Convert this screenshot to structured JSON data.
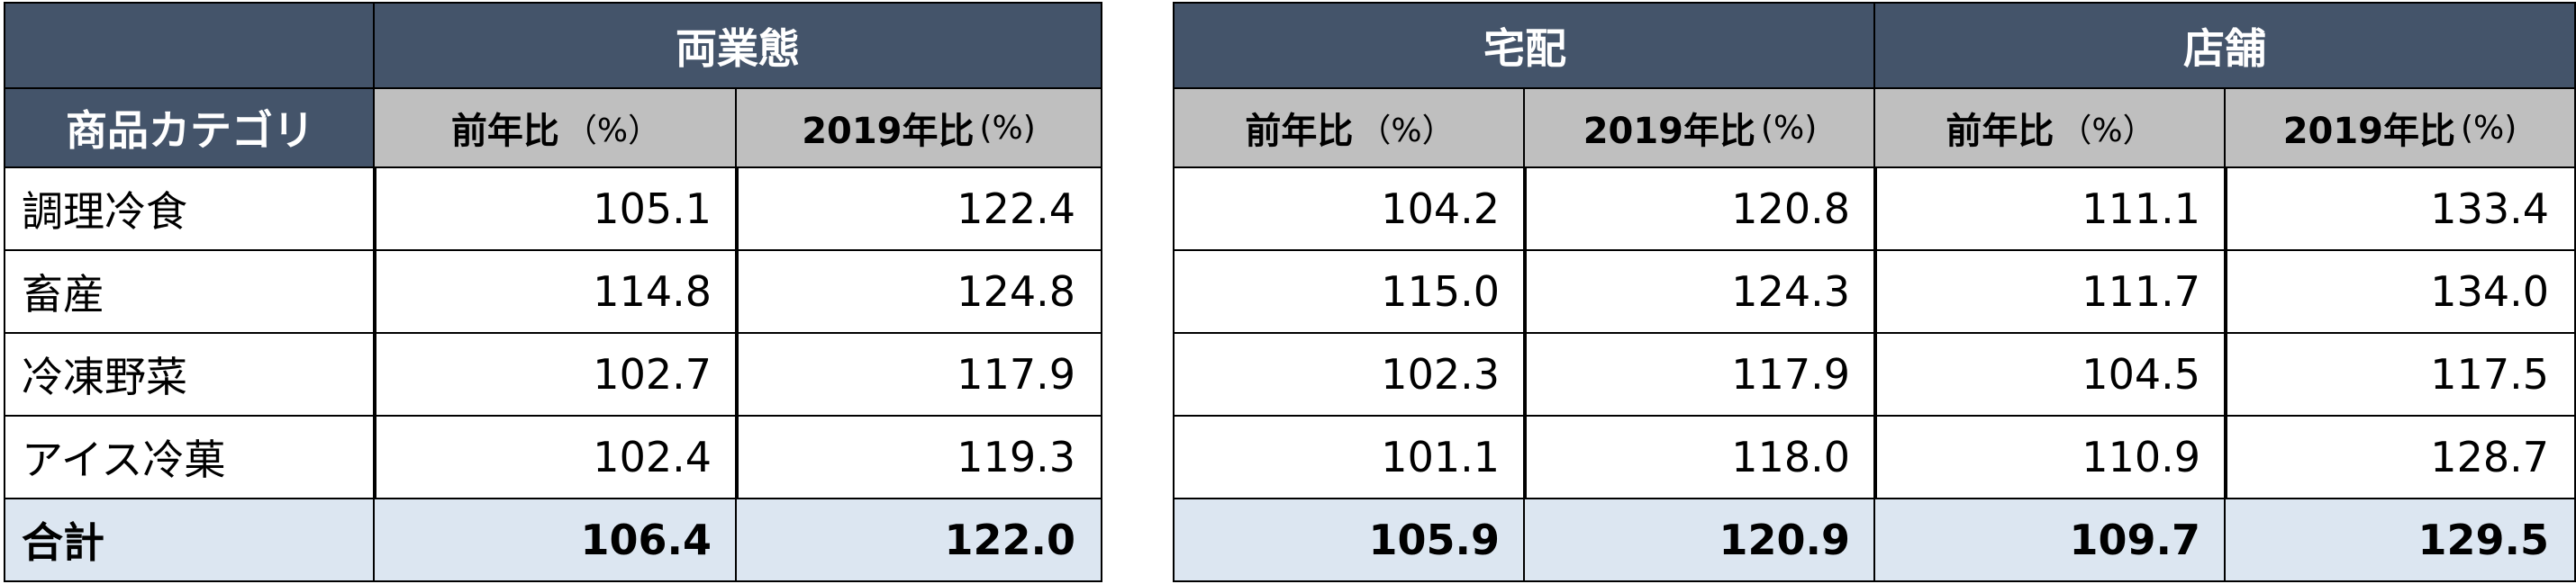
{
  "category_header": "商品カテゴリ",
  "groups": [
    {
      "title": "両業態"
    },
    {
      "title": "宅配"
    },
    {
      "title": "店舗"
    }
  ],
  "column_headers": [
    {
      "main": "前年比",
      "unit": "（%）"
    },
    {
      "main": "2019年比",
      "unit": "(%)"
    }
  ],
  "rows": [
    {
      "label": "調理冷食",
      "values": [
        "105.1",
        "122.4",
        "104.2",
        "120.8",
        "111.1",
        "133.4"
      ]
    },
    {
      "label": "畜産",
      "values": [
        "114.8",
        "124.8",
        "115.0",
        "124.3",
        "111.7",
        "134.0"
      ]
    },
    {
      "label": "冷凍野菜",
      "values": [
        "102.7",
        "117.9",
        "102.3",
        "117.9",
        "104.5",
        "117.5"
      ]
    },
    {
      "label": "アイス冷菓",
      "values": [
        "102.4",
        "119.3",
        "101.1",
        "118.0",
        "110.9",
        "128.7"
      ]
    }
  ],
  "total": {
    "label": "合計",
    "values": [
      "106.4",
      "122.0",
      "105.9",
      "120.9",
      "109.7",
      "129.5"
    ]
  }
}
